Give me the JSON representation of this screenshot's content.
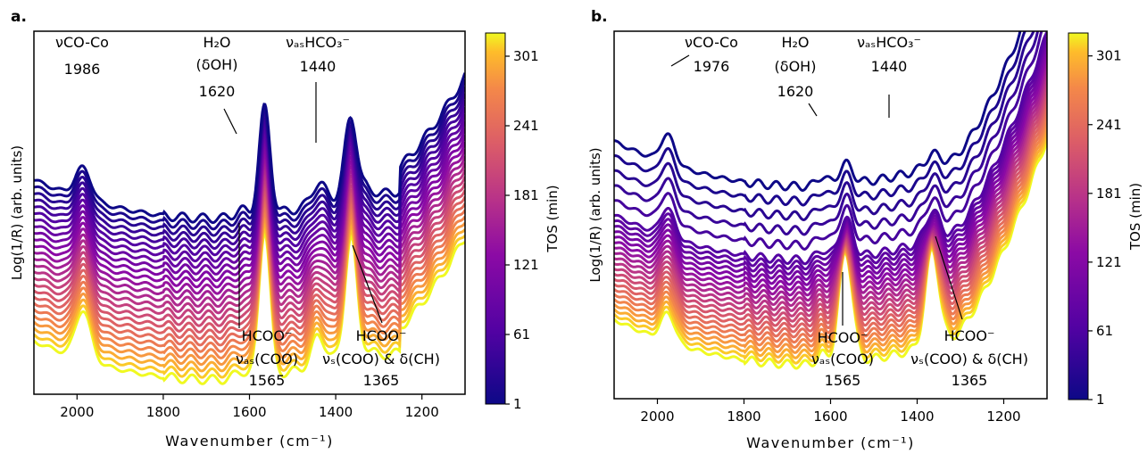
{
  "chart_data": [
    {
      "type": "line",
      "panel_label": "a.",
      "xlabel": "Wavenumber (cm⁻¹)",
      "ylabel": "Log(1/R) (arb. units)",
      "xlim": [
        2100,
        1100
      ],
      "x_reversed": true,
      "xticks": [
        2000,
        1800,
        1600,
        1400,
        1200
      ],
      "yticks_shown": false,
      "grid": false,
      "colorbar": {
        "label": "TOS (min)",
        "range": [
          1,
          321
        ],
        "ticks": [
          1,
          61,
          121,
          181,
          241,
          301
        ],
        "colormap": "plasma"
      },
      "n_series": 26,
      "series_color_order": "dark purple (1 min) on top to yellow (321 min) at bottom",
      "annotations": [
        {
          "lines": [
            "νCO-Co",
            "1986"
          ],
          "x": 1986
        },
        {
          "lines": [
            "H₂O",
            "(δOH)",
            "1620"
          ],
          "x": 1620
        },
        {
          "lines": [
            "νₐₛHCO₃⁻",
            "1440"
          ],
          "x": 1440
        },
        {
          "lines": [
            "HCOO⁻",
            "νₐₛ(COO)",
            "1565"
          ],
          "x": 1565
        },
        {
          "lines": [
            "HCOO⁻",
            "νₛ(COO) & δ(CH)",
            "1365"
          ],
          "x": 1365
        }
      ]
    },
    {
      "type": "line",
      "panel_label": "b.",
      "xlabel": "Wavenumber (cm⁻¹)",
      "ylabel": "Log(1/R) (arb. units)",
      "xlim": [
        2100,
        1100
      ],
      "x_reversed": true,
      "xticks": [
        2000,
        1800,
        1600,
        1400,
        1200
      ],
      "yticks_shown": false,
      "grid": false,
      "colorbar": {
        "label": "TOS (min)",
        "range": [
          1,
          321
        ],
        "ticks": [
          1,
          61,
          121,
          181,
          241,
          301
        ],
        "colormap": "plasma"
      },
      "n_series": 26,
      "series_color_order": "dark purple (1 min) on top to yellow (321 min) at bottom",
      "annotations": [
        {
          "lines": [
            "νCO-Co",
            "1976"
          ],
          "x": 1976
        },
        {
          "lines": [
            "H₂O",
            "(δOH)",
            "1620"
          ],
          "x": 1620
        },
        {
          "lines": [
            "νₐₛHCO₃⁻",
            "1440"
          ],
          "x": 1440
        },
        {
          "lines": [
            "HCOO⁻",
            "νₐₛ(COO)",
            "1565"
          ],
          "x": 1565
        },
        {
          "lines": [
            "HCOO⁻",
            "νₛ(COO) & δ(CH)",
            "1365"
          ],
          "x": 1365
        }
      ]
    }
  ]
}
